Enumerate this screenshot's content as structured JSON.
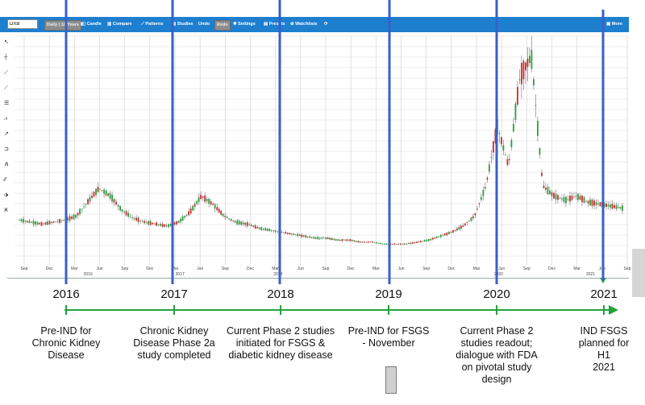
{
  "toolbar": {
    "symbol": "DXB",
    "range": "Daily | 10 Years",
    "candle": "Candle",
    "compare": "Compare",
    "patterns": "Patterns",
    "studies": "Studies",
    "undo": "Undo",
    "redo": "Redo",
    "settings": "Settings",
    "presets": "Presets",
    "watchlists": "Watchlists",
    "more": "More",
    "colors": {
      "bar": "#1e7fcf",
      "overlay_line": "#3a5fc8",
      "timeline": "#22a33b"
    }
  },
  "chart_data": [
    {
      "type": "line",
      "title": "",
      "x_tick_labels": [
        "Sep",
        "Dec",
        "Mar",
        "Jun",
        "Sep",
        "Dec",
        "Mar",
        "Jun",
        "Sep",
        "Dec",
        "Mar",
        "Jun",
        "Sep",
        "Dec",
        "Mar",
        "Jun",
        "Sep",
        "Dec",
        "Mar",
        "Jun",
        "Sep",
        "Dec",
        "Mar",
        "Jun",
        "Sep"
      ],
      "x_year_labels": [
        "2016",
        "2017",
        "2018",
        "2020",
        "2021"
      ],
      "note": "",
      "series": [
        {
          "values": [
            0.18,
            0.17,
            0.16,
            0.17,
            0.18,
            0.2,
            0.27,
            0.34,
            0.3,
            0.23,
            0.19,
            0.17,
            0.16,
            0.15,
            0.17,
            0.22,
            0.3,
            0.26,
            0.2,
            0.17,
            0.16,
            0.14,
            0.13,
            0.12,
            0.11,
            0.1,
            0.09,
            0.09,
            0.08,
            0.08,
            0.07,
            0.07,
            0.06,
            0.06,
            0.06,
            0.07,
            0.08,
            0.1,
            0.12,
            0.15,
            0.2,
            0.35,
            0.65,
            0.45,
            0.9,
            1.0,
            0.35,
            0.3,
            0.28,
            0.3,
            0.27,
            0.26,
            0.25,
            0.24
          ]
        }
      ]
    },
    {
      "type": "timeline",
      "years": [
        "2016",
        "2017",
        "2018",
        "2019",
        "2020",
        "2021"
      ],
      "milestones": [
        "Pre-IND for\nChronic Kidney\nDisease",
        "Chronic Kidney\nDisease Phase 2a\nstudy completed",
        "Current Phase 2 studies\ninitiated for FSGS &\ndiabetic kidney disease",
        "Pre-IND for FSGS\n- November",
        "Current Phase 2\nstudies readout;\ndialogue with FDA\non pivotal study\ndesign",
        "IND FSGS\nplanned for H1\n2021"
      ]
    }
  ]
}
